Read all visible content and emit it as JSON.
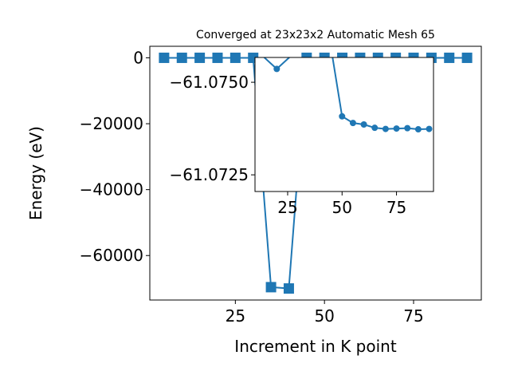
{
  "chart_data": [
    {
      "type": "line",
      "title": "Converged at 23x23x2 Automatic Mesh 65",
      "xlabel": "Increment in K point",
      "ylabel": "Energy (eV)",
      "xlim": [
        1,
        94
      ],
      "ylim": [
        -73500,
        3500
      ],
      "xticks": [
        25,
        50,
        75
      ],
      "yticks": [
        0,
        -20000,
        -40000,
        -60000
      ],
      "ytick_labels": [
        "0",
        "−20000",
        "−40000",
        "−60000"
      ],
      "xtick_labels": [
        "25",
        "50",
        "75"
      ],
      "color": "#1f77b4",
      "marker": "square",
      "grid": false,
      "series": [
        {
          "x": [
            5,
            10,
            15,
            20,
            25,
            30,
            35,
            40,
            45,
            50,
            55,
            60,
            65,
            70,
            75,
            80,
            85,
            90
          ],
          "y": [
            0,
            0,
            0,
            0,
            0,
            0,
            -69600,
            -70000,
            0,
            0,
            0,
            0,
            0,
            0,
            0,
            0,
            0,
            0
          ]
        }
      ]
    },
    {
      "type": "line",
      "inset": true,
      "xlim": [
        10,
        92
      ],
      "ylim": [
        -61.07205,
        -61.07567
      ],
      "xticks": [
        25,
        50,
        75
      ],
      "yticks": [
        -61.075,
        -61.0725
      ],
      "ytick_labels": [
        "−61.0750",
        "−61.0725"
      ],
      "xtick_labels": [
        "25",
        "50",
        "75"
      ],
      "color": "#1f77b4",
      "marker": "circle",
      "grid": false,
      "series": [
        {
          "x": [
            10,
            20,
            30,
            45,
            50,
            55,
            60,
            65,
            70,
            75,
            80,
            85,
            90
          ],
          "y": [
            -61.0759,
            -61.07536,
            -61.0759,
            -61.0759,
            -61.07408,
            -61.0739,
            -61.07386,
            -61.07377,
            -61.07374,
            -61.07375,
            -61.07376,
            -61.07373,
            -61.07374
          ]
        }
      ]
    }
  ]
}
